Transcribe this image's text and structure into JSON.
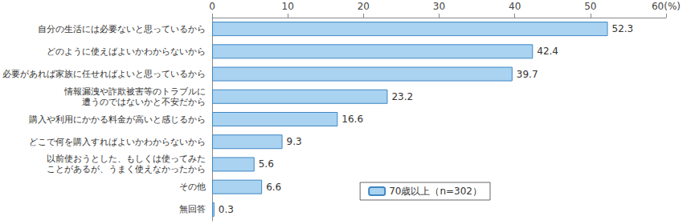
{
  "chart_data": {
    "type": "bar",
    "orientation": "horizontal",
    "categories": [
      "自分の生活には必要ないと思っているから",
      "どのように使えばよいかわからないから",
      "必要があれば家族に任せればよいと思っているから",
      "情報漏洩や詐欺被害等のトラブルに\n遭うのではないかと不安だから",
      "購入や利用にかかる料金が高いと感じるから",
      "どこで何を購入すればよいかわからないから",
      "以前使おうとした、もしくは使ってみた\nことがあるが、うまく使えなかったから",
      "その他",
      "無回答"
    ],
    "series": [
      {
        "name": "70歳以上（n=302）",
        "color": "#a9d3f0",
        "values": [
          52.3,
          42.4,
          39.7,
          23.2,
          16.6,
          9.3,
          5.6,
          6.6,
          0.3
        ]
      }
    ],
    "xlim": [
      0,
      60
    ],
    "xticks": [
      0,
      10,
      20,
      30,
      40,
      50,
      {
        "value": 60,
        "label": "60(%)"
      }
    ],
    "grid": false,
    "legend": "bottom-right",
    "data_labels": true
  }
}
